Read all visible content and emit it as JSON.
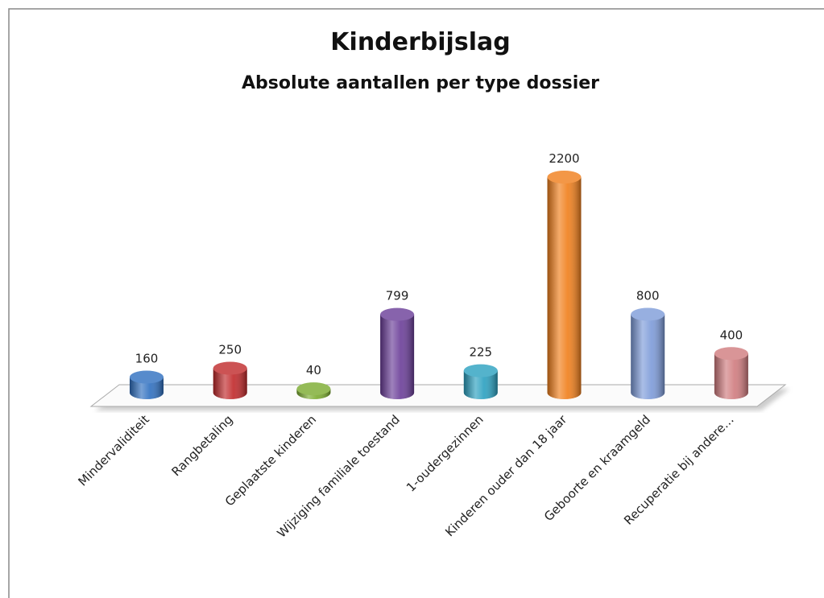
{
  "chart_data": {
    "type": "bar",
    "title": "Kinderbijslag",
    "subtitle": "Absolute aantallen per type dossier",
    "categories": [
      "Mindervaliditeit",
      "Rangbetaling",
      "Geplaatste kinderen",
      "Wijziging familiale toestand",
      "1-oudergezinnen",
      "Kinderen ouder dan 18 jaar",
      "Geboorte en kraamgeld",
      "Recuperatie bij andere…"
    ],
    "values": [
      160,
      250,
      40,
      799,
      225,
      2200,
      800,
      400
    ],
    "colors": [
      "#2e6fc0",
      "#c0282a",
      "#7aab2e",
      "#6a3d98",
      "#2aa0c0",
      "#f07e1a",
      "#7d9bd9",
      "#d07b7e"
    ]
  }
}
